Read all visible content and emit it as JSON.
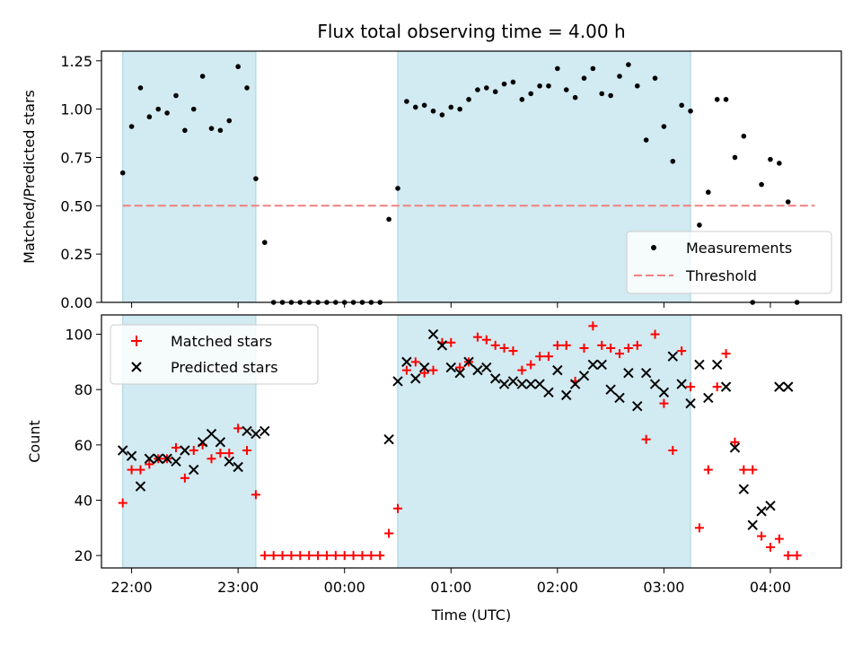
{
  "chart_data": {
    "title": "Flux total observing time = 4.00 h",
    "xlabel": "Time (UTC)",
    "x_tick_labels": [
      "22:00",
      "23:00",
      "00:00",
      "01:00",
      "02:00",
      "03:00",
      "04:00"
    ],
    "x_tick_hours": [
      22,
      23,
      24,
      25,
      26,
      27,
      28
    ],
    "xlim": [
      "21:43",
      "04:40"
    ],
    "shaded_intervals": [
      [
        "21:55",
        "23:10"
      ],
      [
        "00:30",
        "03:15"
      ]
    ],
    "shade_color": "#add8e6",
    "panels": [
      {
        "type": "scatter",
        "ylabel": "Matched/Predicted stars",
        "ylim": [
          0,
          1.3
        ],
        "y_tick_values": [
          0,
          0.25,
          0.5,
          0.75,
          1,
          1.25
        ],
        "y_tick_labels": [
          "0.00",
          "0.25",
          "0.50",
          "0.75",
          "1.00",
          "1.25"
        ],
        "legend_position": "lower-right",
        "threshold": {
          "name": "Threshold",
          "y": 0.5,
          "x_range": [
            "21:55",
            "04:25"
          ],
          "color": "#f08080"
        },
        "series": [
          {
            "name": "Measurements",
            "marker": "dot",
            "color": "#000000",
            "x": [
              "21:55",
              "22:00",
              "22:05",
              "22:10",
              "22:15",
              "22:20",
              "22:25",
              "22:30",
              "22:35",
              "22:40",
              "22:45",
              "22:50",
              "22:55",
              "23:00",
              "23:05",
              "23:10",
              "23:15",
              "23:20",
              "23:25",
              "23:30",
              "23:35",
              "23:40",
              "23:45",
              "23:50",
              "23:55",
              "00:00",
              "00:05",
              "00:10",
              "00:15",
              "00:20",
              "00:25",
              "00:30",
              "00:35",
              "00:40",
              "00:45",
              "00:50",
              "00:55",
              "01:00",
              "01:05",
              "01:10",
              "01:15",
              "01:20",
              "01:25",
              "01:30",
              "01:35",
              "01:40",
              "01:45",
              "01:50",
              "01:55",
              "02:00",
              "02:05",
              "02:10",
              "02:15",
              "02:20",
              "02:25",
              "02:30",
              "02:35",
              "02:40",
              "02:45",
              "02:50",
              "02:55",
              "03:00",
              "03:05",
              "03:10",
              "03:15",
              "03:20",
              "03:25",
              "03:30",
              "03:35",
              "03:40",
              "03:45",
              "03:50",
              "03:55",
              "04:00",
              "04:05",
              "04:10",
              "04:15"
            ],
            "y": [
              0.67,
              0.91,
              1.11,
              0.96,
              1.0,
              0.98,
              1.07,
              0.89,
              1.0,
              1.17,
              0.9,
              0.89,
              0.94,
              1.22,
              1.11,
              0.64,
              0.31,
              0,
              0,
              0,
              0,
              0,
              0,
              0,
              0,
              0,
              0,
              0,
              0,
              0,
              0.43,
              0.59,
              1.04,
              1.01,
              1.02,
              0.99,
              0.97,
              1.01,
              1.0,
              1.05,
              1.1,
              1.11,
              1.09,
              1.13,
              1.14,
              1.05,
              1.08,
              1.12,
              1.12,
              1.21,
              1.1,
              1.06,
              1.16,
              1.21,
              1.08,
              1.07,
              1.17,
              1.23,
              1.12,
              0.84,
              1.16,
              0.91,
              0.73,
              1.02,
              0.99,
              0.4,
              0.57,
              1.05,
              1.05,
              0.75,
              0.86,
              0,
              0.61,
              0.74,
              0.72,
              0.52,
              0
            ]
          }
        ]
      },
      {
        "type": "scatter",
        "ylabel": "Count",
        "ylim": [
          15.5,
          107
        ],
        "y_tick_values": [
          20,
          40,
          60,
          80,
          100
        ],
        "y_tick_labels": [
          "20",
          "40",
          "60",
          "80",
          "100"
        ],
        "legend_position": "upper-left",
        "series": [
          {
            "name": "Matched stars",
            "marker": "plus",
            "color": "#ff0000",
            "x": [
              "21:55",
              "22:00",
              "22:05",
              "22:10",
              "22:15",
              "22:20",
              "22:25",
              "22:30",
              "22:35",
              "22:40",
              "22:45",
              "22:50",
              "22:55",
              "23:00",
              "23:05",
              "23:10",
              "23:15",
              "23:20",
              "23:25",
              "23:30",
              "23:35",
              "23:40",
              "23:45",
              "23:50",
              "23:55",
              "00:00",
              "00:05",
              "00:10",
              "00:15",
              "00:20",
              "00:25",
              "00:30",
              "00:35",
              "00:40",
              "00:45",
              "00:50",
              "00:55",
              "01:00",
              "01:05",
              "01:10",
              "01:15",
              "01:20",
              "01:25",
              "01:30",
              "01:35",
              "01:40",
              "01:45",
              "01:50",
              "01:55",
              "02:00",
              "02:05",
              "02:10",
              "02:15",
              "02:20",
              "02:25",
              "02:30",
              "02:35",
              "02:40",
              "02:45",
              "02:50",
              "02:55",
              "03:00",
              "03:05",
              "03:10",
              "03:15",
              "03:20",
              "03:25",
              "03:30",
              "03:35",
              "03:40",
              "03:45",
              "03:50",
              "03:55",
              "04:00",
              "04:05",
              "04:10",
              "04:15"
            ],
            "y": [
              39,
              51,
              51,
              53,
              55,
              55,
              59,
              48,
              58,
              60,
              55,
              57,
              57,
              66,
              58,
              42,
              20,
              20,
              20,
              20,
              20,
              20,
              20,
              20,
              20,
              20,
              20,
              20,
              20,
              20,
              28,
              37,
              87,
              90,
              86,
              87,
              97,
              97,
              88,
              90,
              99,
              98,
              96,
              95,
              94,
              87,
              89,
              92,
              92,
              96,
              96,
              83,
              95,
              103,
              96,
              95,
              93,
              95,
              96,
              62,
              100,
              75,
              58,
              94,
              81,
              30,
              51,
              81,
              93,
              61,
              51,
              51,
              27,
              23,
              26,
              20,
              20
            ]
          },
          {
            "name": "Predicted stars",
            "marker": "x",
            "color": "#000000",
            "x": [
              "21:55",
              "22:00",
              "22:05",
              "22:10",
              "22:15",
              "22:20",
              "22:25",
              "22:30",
              "22:35",
              "22:40",
              "22:45",
              "22:50",
              "22:55",
              "23:00",
              "23:05",
              "23:10",
              "23:15",
              "00:25",
              "00:30",
              "00:35",
              "00:40",
              "00:45",
              "00:50",
              "00:55",
              "01:00",
              "01:05",
              "01:10",
              "01:15",
              "01:20",
              "01:25",
              "01:30",
              "01:35",
              "01:40",
              "01:45",
              "01:50",
              "01:55",
              "02:00",
              "02:05",
              "02:10",
              "02:15",
              "02:20",
              "02:25",
              "02:30",
              "02:35",
              "02:40",
              "02:45",
              "02:50",
              "02:55",
              "03:00",
              "03:05",
              "03:10",
              "03:15",
              "03:20",
              "03:25",
              "03:30",
              "03:35",
              "03:40",
              "03:45",
              "03:50",
              "03:55",
              "04:00",
              "04:05",
              "04:10"
            ],
            "y": [
              58,
              56,
              45,
              55,
              55,
              55,
              54,
              58,
              51,
              61,
              64,
              61,
              54,
              52,
              65,
              64,
              65,
              62,
              83,
              90,
              84,
              88,
              100,
              96,
              88,
              86,
              90,
              87,
              88,
              84,
              82,
              83,
              82,
              82,
              82,
              79,
              87,
              78,
              82,
              85,
              89,
              89,
              80,
              77,
              86,
              74,
              86,
              82,
              79,
              92,
              82,
              75,
              89,
              77,
              89,
              81,
              59,
              44,
              31,
              36,
              38,
              81,
              81
            ]
          }
        ]
      }
    ]
  }
}
